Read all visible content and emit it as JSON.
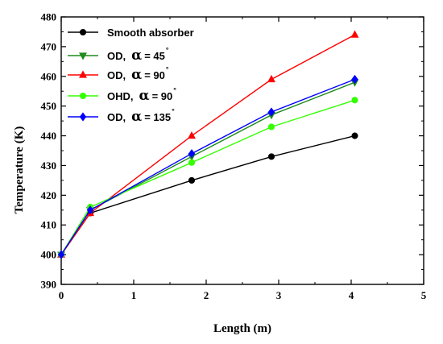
{
  "chart_data": {
    "type": "line",
    "xlabel": "Length (m)",
    "ylabel": "Temperature (K)",
    "xlim": [
      0,
      5
    ],
    "ylim": [
      390,
      480
    ],
    "xticks": [
      0,
      1,
      2,
      3,
      4,
      5
    ],
    "yticks": [
      390,
      400,
      410,
      420,
      430,
      440,
      450,
      460,
      470,
      480
    ],
    "legend_position": "top-left",
    "grid": false,
    "series": [
      {
        "name": "Smooth absorber",
        "legend_parts": [
          "Smooth absorber"
        ],
        "color": "#000000",
        "marker": "circle",
        "x": [
          0,
          0.4,
          1.8,
          2.9,
          4.05
        ],
        "y": [
          400,
          414,
          425,
          433,
          440
        ]
      },
      {
        "name": "OD, α = 45°",
        "legend_parts": [
          "OD,",
          "α",
          "= 45",
          "°"
        ],
        "color": "#1e8c1e",
        "marker": "triangle-down",
        "x": [
          0,
          0.4,
          1.8,
          2.9,
          4.05
        ],
        "y": [
          400,
          415,
          433,
          447,
          458
        ]
      },
      {
        "name": "OD, α = 90°",
        "legend_parts": [
          "OD,",
          "α",
          "= 90",
          "°"
        ],
        "color": "#ff0000",
        "marker": "triangle-up",
        "x": [
          0,
          0.4,
          1.8,
          2.9,
          4.05
        ],
        "y": [
          400,
          414,
          440,
          459,
          474
        ]
      },
      {
        "name": "OHD, α = 90°",
        "legend_parts": [
          "OHD,",
          "α",
          "= 90",
          "°"
        ],
        "color": "#33ff00",
        "marker": "circle",
        "x": [
          0,
          0.4,
          1.8,
          2.9,
          4.05
        ],
        "y": [
          400,
          416,
          431,
          443,
          452
        ]
      },
      {
        "name": "OD, α = 135°",
        "legend_parts": [
          "OD,",
          "α",
          "= 135",
          "°"
        ],
        "color": "#0000ff",
        "marker": "diamond",
        "x": [
          0,
          0.4,
          1.8,
          2.9,
          4.05
        ],
        "y": [
          400,
          415,
          434,
          448,
          459
        ]
      }
    ]
  }
}
